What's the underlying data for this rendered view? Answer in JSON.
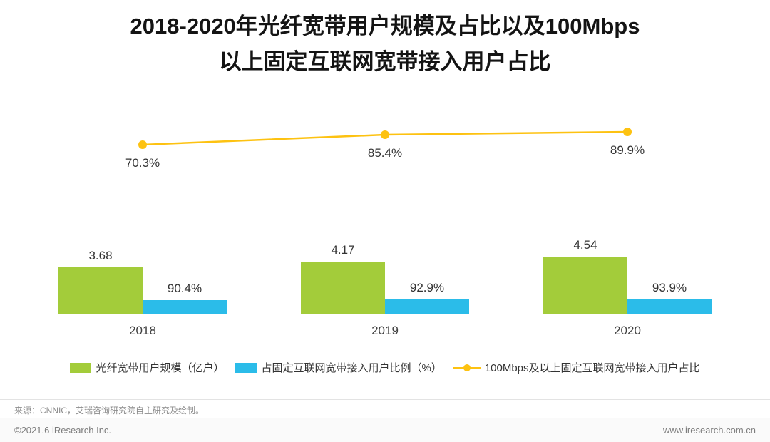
{
  "title": {
    "line1": "2018-2020年光纤宽带用户规模及占比以及100Mbps",
    "line2": "以上固定互联网宽带接入用户占比"
  },
  "chart_data": {
    "type": "bar",
    "subtype": "bar+line combo",
    "title": "2018-2020年光纤宽带用户规模及占比以及100Mbps以上固定互联网宽带接入用户占比",
    "categories": [
      "2018",
      "2019",
      "2020"
    ],
    "series": [
      {
        "name": "光纤宽带用户规模（亿户）",
        "type": "bar",
        "color": "#A3CC3A",
        "values": [
          3.68,
          4.17,
          4.54
        ],
        "labels": [
          "3.68",
          "4.17",
          "4.54"
        ]
      },
      {
        "name": "占固定互联网宽带接入用户比例（%）",
        "type": "bar",
        "color": "#2BBCE9",
        "values": [
          90.4,
          92.9,
          93.9
        ],
        "labels": [
          "90.4%",
          "92.9%",
          "93.9%"
        ]
      },
      {
        "name": "100Mbps及以上固定互联网宽带接入用户占比",
        "type": "line",
        "color": "#FDC211",
        "values": [
          70.3,
          85.4,
          89.9
        ],
        "labels": [
          "70.3%",
          "85.4%",
          "89.9%"
        ]
      }
    ],
    "xlabel": "",
    "ylabel": "",
    "bar_axis_range": [
      0,
      5
    ],
    "line_axis_range": [
      0,
      100
    ],
    "grid": false,
    "legend_position": "bottom"
  },
  "footer": {
    "source": "来源：CNNIC，艾瑞咨询研究院自主研究及绘制。",
    "copyright": "©2021.6 iResearch Inc.",
    "website": "www.iresearch.com.cn"
  }
}
